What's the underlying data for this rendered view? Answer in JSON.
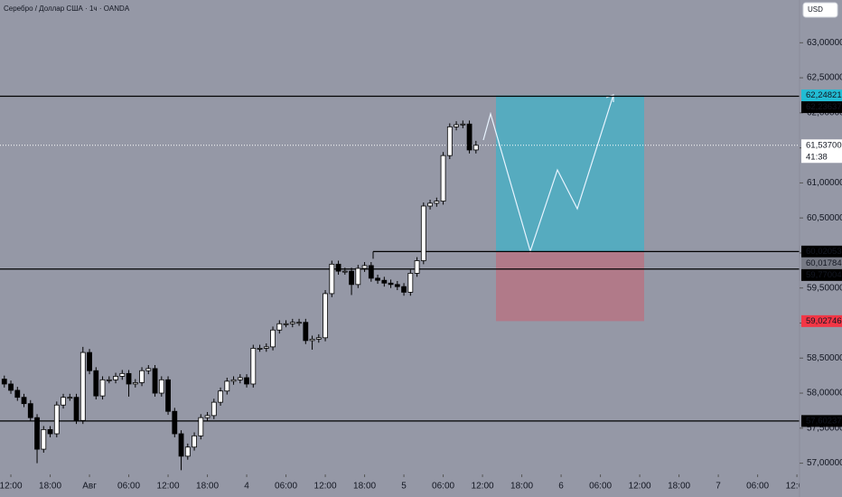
{
  "chart_data": {
    "type": "candlestick",
    "title": "Серебро / Доллар США · 1ч · OANDA",
    "currency": "USD",
    "up_color": "#ffffff",
    "down_color": "#000000",
    "x": [
      -1,
      0,
      1,
      2,
      3,
      4,
      5,
      6,
      7,
      8,
      9,
      10,
      11,
      12,
      13,
      14,
      15,
      16,
      17,
      18,
      19,
      20,
      21,
      22,
      23,
      24,
      25,
      26,
      27,
      28,
      29,
      30,
      31,
      32,
      33,
      34,
      35,
      36,
      37,
      38,
      39,
      40,
      41,
      42,
      43,
      44,
      45,
      46,
      47,
      48,
      49,
      50,
      51,
      52,
      53,
      54,
      55,
      56,
      57,
      58,
      59,
      60,
      61,
      62,
      63,
      64,
      65,
      66,
      67,
      68,
      69,
      70,
      71
    ],
    "open": [
      58.2,
      58.13,
      58.04,
      57.94,
      57.85,
      57.65,
      57.2,
      57.48,
      57.42,
      57.83,
      57.94,
      57.94,
      57.61,
      58.58,
      58.32,
      57.96,
      58.19,
      58.19,
      58.24,
      58.28,
      58.13,
      58.15,
      58.32,
      58.35,
      58.0,
      58.19,
      57.74,
      57.42,
      57.1,
      57.23,
      57.39,
      57.65,
      57.68,
      57.87,
      58.03,
      58.17,
      58.19,
      58.22,
      58.13,
      58.64,
      58.64,
      58.66,
      58.9,
      58.99,
      58.99,
      59.01,
      59.01,
      58.75,
      58.77,
      58.79,
      59.42,
      59.84,
      59.74,
      59.74,
      59.55,
      59.78,
      59.82,
      59.64,
      59.61,
      59.57,
      59.55,
      59.52,
      59.44,
      59.71,
      59.89,
      60.67,
      60.71,
      60.74,
      61.39,
      61.8,
      61.83,
      61.84,
      61.47
    ],
    "high": [
      58.25,
      58.18,
      58.09,
      57.99,
      57.9,
      57.7,
      57.53,
      57.53,
      57.88,
      57.99,
      57.99,
      57.99,
      58.66,
      58.63,
      58.37,
      58.24,
      58.24,
      58.29,
      58.33,
      58.33,
      58.2,
      58.37,
      58.4,
      58.4,
      58.24,
      58.24,
      57.79,
      57.47,
      57.28,
      57.44,
      57.7,
      57.73,
      57.92,
      58.08,
      58.22,
      58.24,
      58.27,
      58.27,
      58.69,
      58.69,
      58.71,
      58.95,
      59.04,
      59.04,
      59.06,
      59.06,
      59.06,
      58.82,
      58.84,
      59.47,
      59.89,
      59.89,
      59.79,
      59.79,
      59.83,
      59.87,
      59.87,
      59.69,
      59.66,
      59.62,
      59.6,
      59.57,
      59.76,
      59.94,
      60.72,
      60.76,
      60.79,
      61.44,
      61.85,
      61.88,
      61.89,
      61.89,
      61.6
    ],
    "low": [
      58.08,
      57.99,
      57.89,
      57.8,
      57.6,
      57.0,
      57.15,
      57.37,
      57.37,
      57.78,
      57.89,
      57.56,
      57.56,
      58.27,
      57.91,
      57.91,
      58.14,
      58.14,
      58.19,
      57.95,
      58.08,
      58.1,
      58.27,
      57.95,
      57.95,
      57.69,
      57.37,
      56.9,
      57.05,
      57.18,
      57.34,
      57.6,
      57.63,
      57.82,
      57.98,
      58.12,
      58.14,
      58.08,
      58.08,
      58.59,
      58.59,
      58.61,
      58.85,
      58.94,
      58.94,
      58.96,
      58.7,
      58.62,
      58.72,
      58.74,
      59.37,
      59.69,
      59.69,
      59.4,
      59.5,
      59.73,
      59.59,
      59.56,
      59.52,
      59.5,
      59.47,
      59.39,
      59.39,
      59.66,
      59.84,
      60.62,
      60.66,
      60.69,
      61.34,
      61.75,
      61.78,
      61.42,
      61.42
    ],
    "close": [
      58.13,
      58.04,
      57.94,
      57.85,
      57.65,
      57.2,
      57.48,
      57.42,
      57.83,
      57.94,
      57.94,
      57.61,
      58.58,
      58.32,
      57.96,
      58.19,
      58.19,
      58.24,
      58.28,
      58.13,
      58.15,
      58.32,
      58.35,
      58.0,
      58.19,
      57.74,
      57.42,
      57.1,
      57.23,
      57.39,
      57.65,
      57.68,
      57.87,
      58.03,
      58.17,
      58.19,
      58.22,
      58.13,
      58.64,
      58.64,
      58.66,
      58.9,
      58.99,
      58.99,
      59.01,
      59.01,
      58.75,
      58.77,
      58.79,
      59.42,
      59.84,
      59.74,
      59.74,
      59.55,
      59.78,
      59.82,
      59.64,
      59.61,
      59.57,
      59.55,
      59.52,
      59.44,
      59.71,
      59.89,
      60.67,
      60.71,
      60.74,
      61.39,
      61.8,
      61.83,
      61.84,
      61.47,
      61.537
    ],
    "last_price": {
      "value": 61.537,
      "label": "61,53700"
    },
    "countdown": "41:38",
    "xlim": [
      -1.66,
      120.4
    ],
    "xticks": [
      {
        "value": 0,
        "label": "12:00"
      },
      {
        "value": 6,
        "label": "18:00"
      },
      {
        "value": 12,
        "label": "Авг"
      },
      {
        "value": 18,
        "label": "06:00"
      },
      {
        "value": 24,
        "label": "12:00"
      },
      {
        "value": 30,
        "label": "18:00"
      },
      {
        "value": 36,
        "label": "4"
      },
      {
        "value": 42,
        "label": "06:00"
      },
      {
        "value": 48,
        "label": "12:00"
      },
      {
        "value": 54,
        "label": "18:00"
      },
      {
        "value": 60,
        "label": "5"
      },
      {
        "value": 66,
        "label": "06:00"
      },
      {
        "value": 72,
        "label": "12:00"
      },
      {
        "value": 78,
        "label": "18:00"
      },
      {
        "value": 84,
        "label": "6"
      },
      {
        "value": 90,
        "label": "06:00"
      },
      {
        "value": 96,
        "label": "12:00"
      },
      {
        "value": 102,
        "label": "18:00"
      },
      {
        "value": 108,
        "label": "7"
      },
      {
        "value": 114,
        "label": "06:00"
      },
      {
        "value": 120,
        "label": "12:00"
      }
    ],
    "ylim": [
      56.84,
      63.61
    ],
    "yticks": [
      {
        "value": 57,
        "label": "57,00000"
      },
      {
        "value": 57.5,
        "label": "57,50000"
      },
      {
        "value": 58,
        "label": "58,00000"
      },
      {
        "value": 58.5,
        "label": "58,50000"
      },
      {
        "value": 59,
        "label": "59,00000"
      },
      {
        "value": 59.5,
        "label": "59,50000"
      },
      {
        "value": 60,
        "label": "60,00000"
      },
      {
        "value": 60.5,
        "label": "60,50000"
      },
      {
        "value": 61,
        "label": "61,00000"
      },
      {
        "value": 61.5,
        "label": "61,50000"
      },
      {
        "value": 62,
        "label": "62,00000"
      },
      {
        "value": 62.5,
        "label": "62,50000"
      },
      {
        "value": 63,
        "label": "63,00000"
      }
    ],
    "hlines": [
      {
        "value": 62.23637,
        "label": "62,23637"
      },
      {
        "value": 60.02053,
        "label": "60,02053"
      },
      {
        "value": 59.77004,
        "label": "59,77004"
      },
      {
        "value": 57.60237,
        "label": "57,60237"
      }
    ],
    "position": {
      "target": {
        "value": 62.24821,
        "label": "62,24821",
        "color": "#22bcd4"
      },
      "entry": {
        "value": 60.01784,
        "label": "60,01784",
        "color": "#787b86"
      },
      "stop": {
        "value": 59.02746,
        "label": "59,02746",
        "color": "#f23645"
      }
    }
  }
}
